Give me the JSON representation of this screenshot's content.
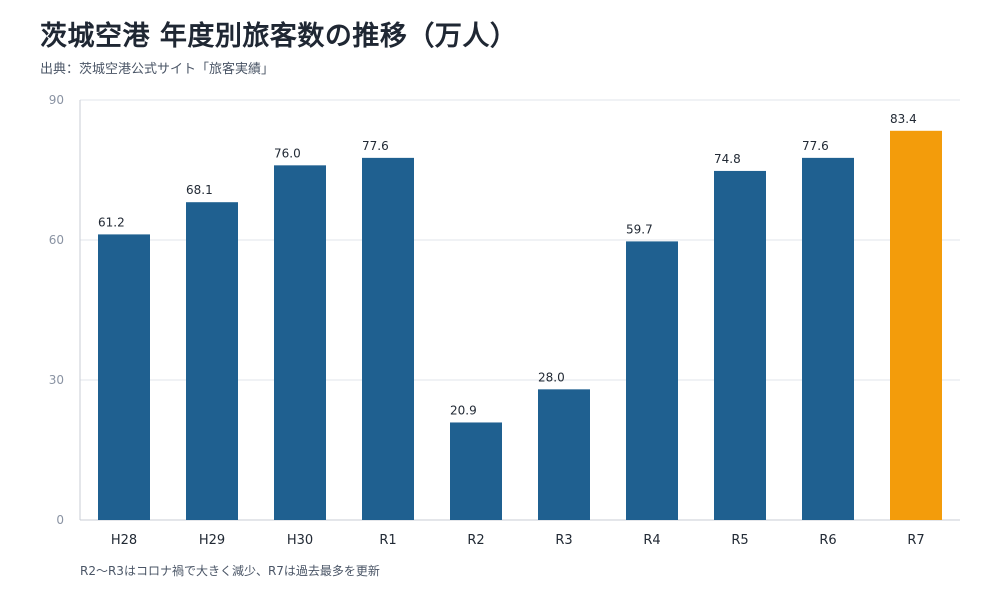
{
  "title": "茨城空港 年度別旅客数の推移（万人）",
  "source": "出典：茨城空港公式サイト「旅客実績」",
  "note": "R2〜R3はコロナ禍で大きく減少、R7は過去最多を更新",
  "colors": {
    "bar": "#1f6090",
    "highlight": "#f39c0b",
    "grid": "#e2e6eb",
    "axis": "#c9ced6"
  },
  "chart_data": {
    "type": "bar",
    "title": "茨城空港 年度別旅客数の推移（万人）",
    "xlabel": "",
    "ylabel": "",
    "categories": [
      "H28",
      "H29",
      "H30",
      "R1",
      "R2",
      "R3",
      "R4",
      "R5",
      "R6",
      "R7"
    ],
    "values": [
      61.2,
      68.1,
      76.0,
      77.6,
      20.9,
      28.0,
      59.7,
      74.8,
      77.6,
      83.4
    ],
    "value_labels": [
      "61.2",
      "68.1",
      "76.0",
      "77.6",
      "20.9",
      "28.0",
      "59.7",
      "74.8",
      "77.6",
      "83.4"
    ],
    "highlight_category": "R7",
    "ylim": [
      0,
      90
    ],
    "yticks": [
      0,
      30,
      60,
      90
    ],
    "grid": true,
    "legend": "none"
  }
}
